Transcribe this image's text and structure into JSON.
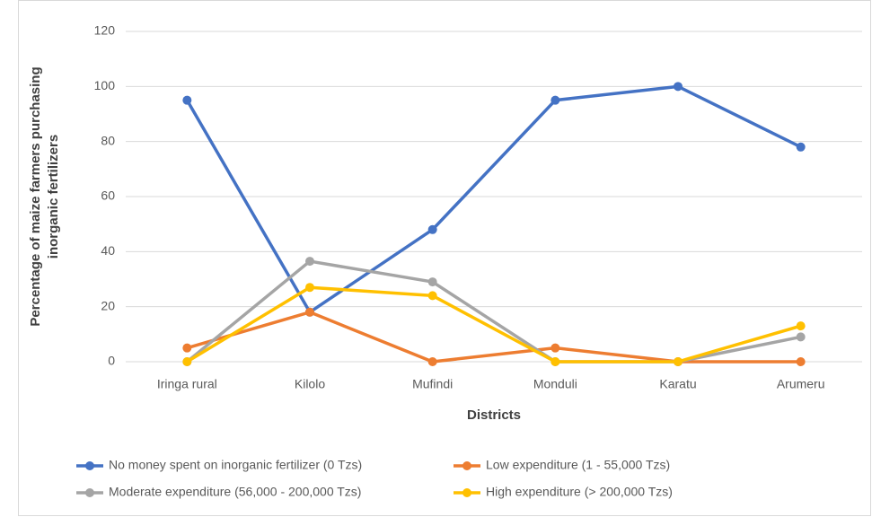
{
  "chart_data": {
    "type": "line",
    "x_label": "Districts",
    "y_label": "Percentage of maize farmers purchasing inorganic fertilizers",
    "categories": [
      "Iringa rural",
      "Kilolo",
      "Mufindi",
      "Monduli",
      "Karatu",
      "Arumeru"
    ],
    "series": [
      {
        "name": "No money spent on inorganic fertilizer (0 Tzs)",
        "color": "#4472c4",
        "values": [
          95,
          18,
          48,
          95,
          100,
          78
        ]
      },
      {
        "name": "Low expenditure (1 - 55,000 Tzs)",
        "color": "#ed7d31",
        "values": [
          5,
          18,
          0,
          5,
          0,
          0
        ]
      },
      {
        "name": "Moderate expenditure (56,000 - 200,000 Tzs)",
        "color": "#a5a5a5",
        "values": [
          0,
          36.5,
          29,
          0,
          0,
          9
        ]
      },
      {
        "name": "High expenditure (> 200,000 Tzs)",
        "color": "#ffc000",
        "values": [
          0,
          27,
          24,
          0,
          0,
          13
        ]
      }
    ],
    "ylim": [
      0,
      120
    ],
    "yticks": [
      0,
      20,
      40,
      60,
      80,
      100,
      120
    ],
    "grid": true,
    "legend": "bottom"
  }
}
